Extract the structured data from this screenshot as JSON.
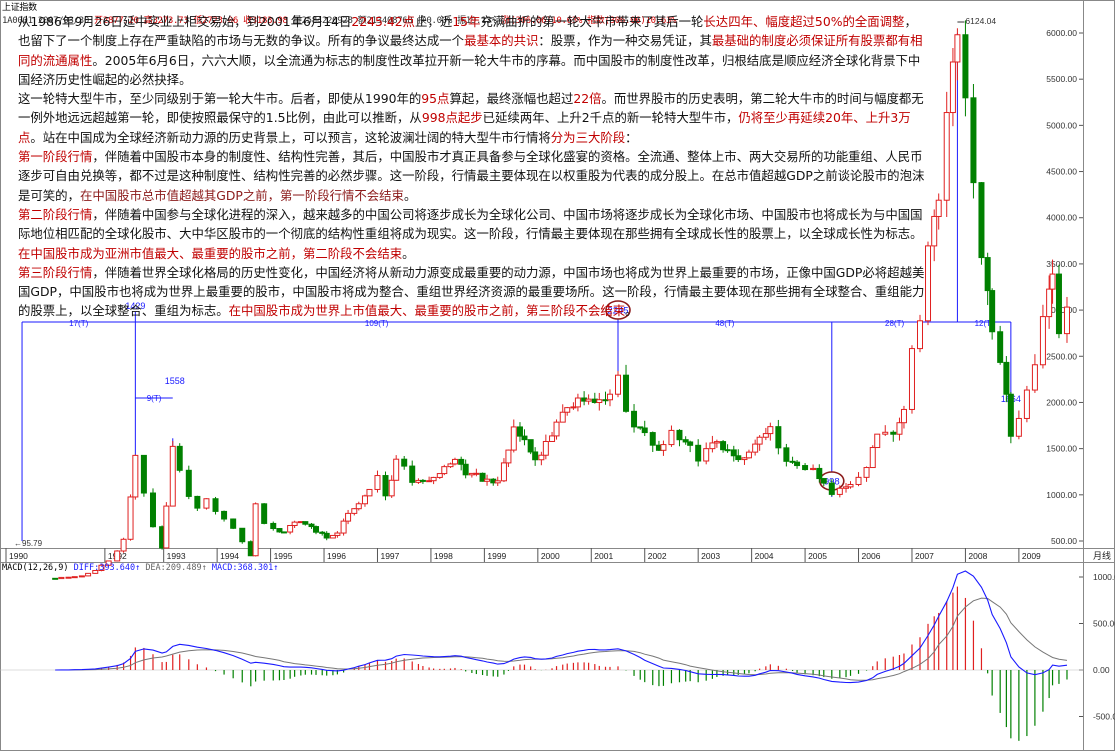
{
  "header": {
    "title": "上证指数",
    "code_date": "1A0001 2007/03/30",
    "open": "开2877.20",
    "high": "高3273.73",
    "low": "低2723.06",
    "close": "收3183.98",
    "volume": "量2584220928",
    "amount": "额213408768",
    "chg_pct": "换0.00%",
    "amp": "振19.13%",
    "rise": "涨(306.06)10.63%",
    "rise2": "指数(306.06)10.63%"
  },
  "article": {
    "p1": [
      {
        "t": "从1986年9月26日延中实业上柜交易始，到2001年6月14日",
        "c": ""
      },
      {
        "t": "2245.42点",
        "c": "red"
      },
      {
        "t": "止，近",
        "c": ""
      },
      {
        "t": "15年",
        "c": "red"
      },
      {
        "t": "充满曲折的第一轮大牛市带来了其后一轮",
        "c": ""
      },
      {
        "t": "长达四年、幅度超过50%的全面调整",
        "c": "red"
      },
      {
        "t": "，也留下了一个制度上存在严重缺陷的市场与无数的争议。所有的争议最终达成一个",
        "c": ""
      },
      {
        "t": "最基本的共识",
        "c": "red"
      },
      {
        "t": "：股票，作为一种交易凭证，其",
        "c": ""
      },
      {
        "t": "最基础的制度必须保证所有股票都有相同的流通属性",
        "c": "red"
      },
      {
        "t": "。2005年6月6日，六六大顺，以全流通为标志的制度性改革拉开新一轮大牛市的序幕。而中国股市的制度性改革，归根结底是顺应经济全球化背景下中国经济历史性崛起的必然抉择。",
        "c": ""
      }
    ],
    "p2": [
      {
        "t": "这一轮特大型牛市，至少同级别于第一轮大牛市。后者，即使从1990年的",
        "c": ""
      },
      {
        "t": "95点",
        "c": "red"
      },
      {
        "t": "算起，最终涨幅也超过",
        "c": ""
      },
      {
        "t": "22倍",
        "c": "red"
      },
      {
        "t": "。而世界股市的历史表明，第二轮大牛市的时间与幅度都无一例外地远远超越第一轮，即使按照最保守的1.5比例，由此可以推断，从",
        "c": ""
      },
      {
        "t": "998点起步",
        "c": "red"
      },
      {
        "t": "已延续两年、上升2千点的新一轮特大型牛市，",
        "c": ""
      },
      {
        "t": "仍将至少再延续20年、上升3万点",
        "c": "red"
      },
      {
        "t": "。站在中国成为全球经济新动力源的历史背景上，可以预言，这轮波澜壮阔的特大型牛市行情将",
        "c": ""
      },
      {
        "t": "分为三大阶段",
        "c": "red"
      },
      {
        "t": "：",
        "c": ""
      }
    ],
    "p3": [
      {
        "t": "第一阶段行情",
        "c": "red"
      },
      {
        "t": "，伴随着中国股市本身的制度性、结构性完善，其后，中国股市才真正具备参与全球化盛宴的资格。全流通、整体上市、两大交易所的功能重组、人民币逐步可自由兑换等，都不过是这种制度性、结构性完善的必然步骤。这一阶段，行情最主要体现在以权重股为代表的成分股上。在总市值超越GDP之前谈论股市的泡沫是可笑的，",
        "c": ""
      },
      {
        "t": "在中国股市总市值超越其GDP之前，第一阶段行情不会结束",
        "c": "dred"
      },
      {
        "t": "。",
        "c": ""
      }
    ],
    "p4": [
      {
        "t": "第二阶段行情",
        "c": "red"
      },
      {
        "t": "，伴随着中国参与全球化进程的深入，越来越多的中国公司将逐步成长为全球化公司、中国市场将逐步成长为全球化市场、中国股市也将成长为与中国国际地位相匹配的全球化股市、大中华区股市的一个彻底的结构性重组将成为现实。这一阶段，行情最主要体现在那些拥有全球成长性的股票上，以全球成长性为标志。",
        "c": ""
      },
      {
        "t": "在中国股市成为亚洲市值最大、最重要的股市之前，第二阶段不会结束",
        "c": "red"
      },
      {
        "t": "。",
        "c": ""
      }
    ],
    "p5": [
      {
        "t": "第三阶段行情",
        "c": "red"
      },
      {
        "t": "，伴随着世界全球化格局的历史性变化，中国经济将从新动力源变成最重要的动力源，中国市场也将成为世界上最重要的市场，正像中国GDP必将超越美国GDP，中国股市也将成为世界上最重要的股市，中国股市将成为整合、重组世界经济资源的最重要场所。这一阶段，行情最主要体现在那些拥有全球整合、重组能力的股票上，以全球整合、重组为标志。",
        "c": ""
      },
      {
        "t": "在中国股市成为世界上市值最大、最重要的股市之前，第三阶段不会结束",
        "c": "red"
      },
      {
        "t": "。",
        "c": ""
      }
    ]
  },
  "macd": {
    "title": "MACD(12,26,9)",
    "diff": "DIFF:393.640↑",
    "dea": "DEA:209.489↑",
    "macd": "MACD:368.301↑"
  },
  "colors": {
    "up": "#e02020",
    "down": "#008000",
    "annot": "#1a1aff",
    "circle": "#8b1a1a"
  },
  "chart_data": [
    {
      "type": "candlestick",
      "interval": "monthly",
      "x_axis": [
        "1990",
        "1992",
        "1993",
        "1994",
        "1995",
        "1996",
        "1997",
        "1998",
        "1999",
        "2000",
        "2001",
        "2002",
        "2003",
        "2004",
        "2005",
        "2006",
        "2007",
        "2008",
        "2009"
      ],
      "x_axis_right_label": "月线",
      "y_ticks": [
        500,
        1000,
        1500,
        2000,
        2500,
        3000,
        3500,
        4000,
        4500,
        5000,
        5500,
        6000
      ],
      "ylim": [
        0,
        6300
      ],
      "series": [
        {
          "t": 1990.92,
          "v": 96
        },
        {
          "t": 1991.17,
          "v": 110
        },
        {
          "t": 1991.42,
          "v": 120
        },
        {
          "t": 1991.67,
          "v": 180
        },
        {
          "t": 1991.92,
          "v": 290
        },
        {
          "t": 1992.08,
          "v": 390
        },
        {
          "t": 1992.2,
          "v": 520
        },
        {
          "t": 1992.33,
          "v": 1000
        },
        {
          "t": 1992.42,
          "v": 1429
        },
        {
          "t": 1992.58,
          "v": 1050
        },
        {
          "t": 1992.75,
          "v": 660
        },
        {
          "t": 1992.92,
          "v": 420
        },
        {
          "t": 1993.0,
          "v": 900
        },
        {
          "t": 1993.12,
          "v": 1558
        },
        {
          "t": 1993.25,
          "v": 1300
        },
        {
          "t": 1993.42,
          "v": 960
        },
        {
          "t": 1993.58,
          "v": 880
        },
        {
          "t": 1993.75,
          "v": 930
        },
        {
          "t": 1993.92,
          "v": 830
        },
        {
          "t": 1994.08,
          "v": 760
        },
        {
          "t": 1994.25,
          "v": 640
        },
        {
          "t": 1994.42,
          "v": 480
        },
        {
          "t": 1994.58,
          "v": 340
        },
        {
          "t": 1994.67,
          "v": 900
        },
        {
          "t": 1994.83,
          "v": 690
        },
        {
          "t": 1995.0,
          "v": 630
        },
        {
          "t": 1995.2,
          "v": 590
        },
        {
          "t": 1995.4,
          "v": 720
        },
        {
          "t": 1995.6,
          "v": 690
        },
        {
          "t": 1995.8,
          "v": 600
        },
        {
          "t": 1996.0,
          "v": 540
        },
        {
          "t": 1996.2,
          "v": 600
        },
        {
          "t": 1996.4,
          "v": 800
        },
        {
          "t": 1996.6,
          "v": 900
        },
        {
          "t": 1996.8,
          "v": 1050
        },
        {
          "t": 1996.95,
          "v": 1220
        },
        {
          "t": 1997.1,
          "v": 980
        },
        {
          "t": 1997.3,
          "v": 1400
        },
        {
          "t": 1997.45,
          "v": 1350
        },
        {
          "t": 1997.6,
          "v": 1150
        },
        {
          "t": 1997.8,
          "v": 1160
        },
        {
          "t": 1998.0,
          "v": 1200
        },
        {
          "t": 1998.2,
          "v": 1300
        },
        {
          "t": 1998.4,
          "v": 1400
        },
        {
          "t": 1998.6,
          "v": 1200
        },
        {
          "t": 1998.8,
          "v": 1200
        },
        {
          "t": 1999.0,
          "v": 1150
        },
        {
          "t": 1999.2,
          "v": 1130
        },
        {
          "t": 1999.4,
          "v": 1500
        },
        {
          "t": 1999.5,
          "v": 1700
        },
        {
          "t": 1999.7,
          "v": 1580
        },
        {
          "t": 1999.9,
          "v": 1360
        },
        {
          "t": 2000.1,
          "v": 1550
        },
        {
          "t": 2000.3,
          "v": 1800
        },
        {
          "t": 2000.5,
          "v": 1900
        },
        {
          "t": 2000.7,
          "v": 2010
        },
        {
          "t": 2000.9,
          "v": 2070
        },
        {
          "t": 2001.1,
          "v": 2000
        },
        {
          "t": 2001.3,
          "v": 2150
        },
        {
          "t": 2001.45,
          "v": 2245
        },
        {
          "t": 2001.6,
          "v": 1920
        },
        {
          "t": 2001.75,
          "v": 1700
        },
        {
          "t": 2001.95,
          "v": 1650
        },
        {
          "t": 2002.1,
          "v": 1500
        },
        {
          "t": 2002.3,
          "v": 1550
        },
        {
          "t": 2002.45,
          "v": 1700
        },
        {
          "t": 2002.6,
          "v": 1600
        },
        {
          "t": 2002.8,
          "v": 1520
        },
        {
          "t": 2002.95,
          "v": 1360
        },
        {
          "t": 2003.1,
          "v": 1500
        },
        {
          "t": 2003.3,
          "v": 1550
        },
        {
          "t": 2003.5,
          "v": 1480
        },
        {
          "t": 2003.7,
          "v": 1400
        },
        {
          "t": 2003.9,
          "v": 1450
        },
        {
          "t": 2004.1,
          "v": 1650
        },
        {
          "t": 2004.3,
          "v": 1760
        },
        {
          "t": 2004.45,
          "v": 1550
        },
        {
          "t": 2004.6,
          "v": 1400
        },
        {
          "t": 2004.8,
          "v": 1330
        },
        {
          "t": 2004.95,
          "v": 1270
        },
        {
          "t": 2005.1,
          "v": 1250
        },
        {
          "t": 2005.3,
          "v": 1130
        },
        {
          "t": 2005.45,
          "v": 998
        },
        {
          "t": 2005.6,
          "v": 1080
        },
        {
          "t": 2005.8,
          "v": 1100
        },
        {
          "t": 2005.95,
          "v": 1160
        },
        {
          "t": 2006.1,
          "v": 1300
        },
        {
          "t": 2006.3,
          "v": 1650
        },
        {
          "t": 2006.45,
          "v": 1680
        },
        {
          "t": 2006.6,
          "v": 1700
        },
        {
          "t": 2006.8,
          "v": 1900
        },
        {
          "t": 2006.95,
          "v": 2650
        },
        {
          "t": 2007.1,
          "v": 2900
        },
        {
          "t": 2007.25,
          "v": 3800
        },
        {
          "t": 2007.45,
          "v": 4100
        },
        {
          "t": 2007.6,
          "v": 5200
        },
        {
          "t": 2007.8,
          "v": 6124
        },
        {
          "t": 2007.95,
          "v": 5300
        },
        {
          "t": 2008.1,
          "v": 4400
        },
        {
          "t": 2008.25,
          "v": 3600
        },
        {
          "t": 2008.45,
          "v": 2700
        },
        {
          "t": 2008.6,
          "v": 2400
        },
        {
          "t": 2008.8,
          "v": 1664
        },
        {
          "t": 2008.95,
          "v": 1820
        },
        {
          "t": 2009.1,
          "v": 2100
        },
        {
          "t": 2009.25,
          "v": 2470
        },
        {
          "t": 2009.4,
          "v": 2900
        },
        {
          "t": 2009.58,
          "v": 3400
        },
        {
          "t": 2009.7,
          "v": 2800
        },
        {
          "t": 2009.85,
          "v": 3050
        }
      ],
      "annotations": {
        "low_1990": "95.79",
        "peak_1992": "1429",
        "peak_1993": "1558",
        "peak_2001": "2245",
        "low_2005": "998",
        "peak_2007": "6124.04",
        "low_2008": "1664",
        "span_1": "17(T)",
        "span_2": "9(T)",
        "span_3": "109(T)",
        "span_4": "48(T)",
        "span_5": "28(T)",
        "span_6": "12(T)"
      }
    },
    {
      "type": "bar",
      "name": "MACD(12,26,9)",
      "y_ticks": [
        -500,
        0,
        500,
        1000
      ],
      "ylim": [
        -750,
        1050
      ]
    }
  ]
}
